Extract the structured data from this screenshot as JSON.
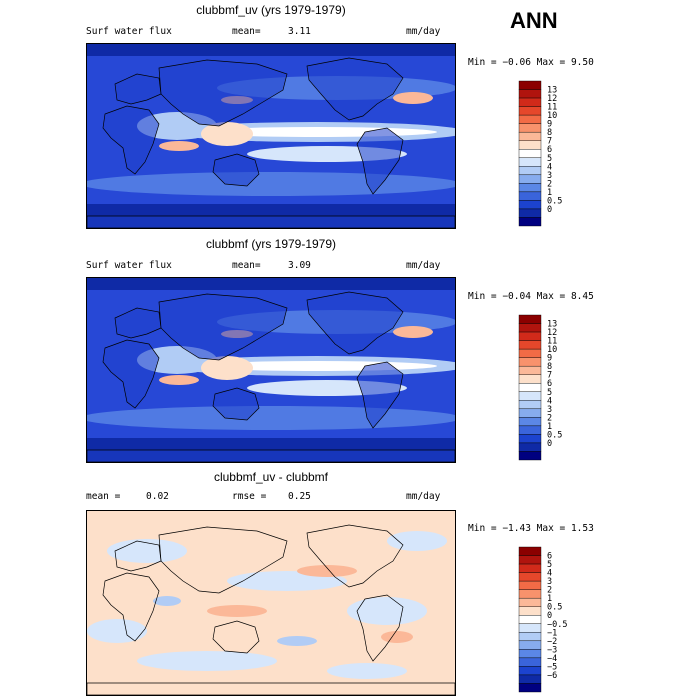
{
  "season": "ANN",
  "panels": [
    {
      "title": "clubbmf_uv (yrs 1979-1979)",
      "left_label": "Surf water flux",
      "mean_label": "mean=",
      "mean_value": "3.11",
      "units": "mm/day",
      "min_max": "Min =  −0.06 Max =   9.50",
      "colorbar": {
        "labels": [
          "13",
          "12",
          "11",
          "10",
          "9",
          "8",
          "7",
          "6",
          "5",
          "4",
          "3",
          "2",
          "1",
          "0.5",
          "0"
        ],
        "colors": [
          "#8b0000",
          "#b0140e",
          "#d12a1a",
          "#e5472b",
          "#f26b46",
          "#f8926c",
          "#fbb898",
          "#fde0ca",
          "#ffffff",
          "#d6e6fb",
          "#b1ccf5",
          "#87acee",
          "#5b87e6",
          "#3a64db",
          "#1c43cf",
          "#0f2aa6",
          "#000080"
        ]
      },
      "style": "wet"
    },
    {
      "title": "clubbmf (yrs 1979-1979)",
      "left_label": "Surf water flux",
      "mean_label": "mean=",
      "mean_value": "3.09",
      "units": "mm/day",
      "min_max": "Min =  −0.04 Max =   8.45",
      "colorbar": {
        "labels": [
          "13",
          "12",
          "11",
          "10",
          "9",
          "8",
          "7",
          "6",
          "5",
          "4",
          "3",
          "2",
          "1",
          "0.5",
          "0"
        ],
        "colors": [
          "#8b0000",
          "#b0140e",
          "#d12a1a",
          "#e5472b",
          "#f26b46",
          "#f8926c",
          "#fbb898",
          "#fde0ca",
          "#ffffff",
          "#d6e6fb",
          "#b1ccf5",
          "#87acee",
          "#5b87e6",
          "#3a64db",
          "#1c43cf",
          "#0f2aa6",
          "#000080"
        ]
      },
      "style": "wet"
    },
    {
      "title": "clubbmf_uv - clubbmf",
      "left_label": "mean =",
      "mean_label": "",
      "mean_value": "0.02",
      "rmse_label": "rmse =",
      "rmse_value": "0.25",
      "units": "mm/day",
      "min_max": "Min =  −1.43 Max =   1.53",
      "colorbar": {
        "labels": [
          "6",
          "5",
          "4",
          "3",
          "2",
          "1",
          "0.5",
          "0",
          "−0.5",
          "−1",
          "−2",
          "−3",
          "−4",
          "−5",
          "−6"
        ],
        "colors": [
          "#8b0000",
          "#b0140e",
          "#d12a1a",
          "#e5472b",
          "#f26b46",
          "#f8926c",
          "#fbb898",
          "#fde0ca",
          "#ffffff",
          "#d6e6fb",
          "#b1ccf5",
          "#87acee",
          "#5b87e6",
          "#3a64db",
          "#1c43cf",
          "#0f2aa6",
          "#000080"
        ]
      },
      "style": "diff"
    }
  ]
}
